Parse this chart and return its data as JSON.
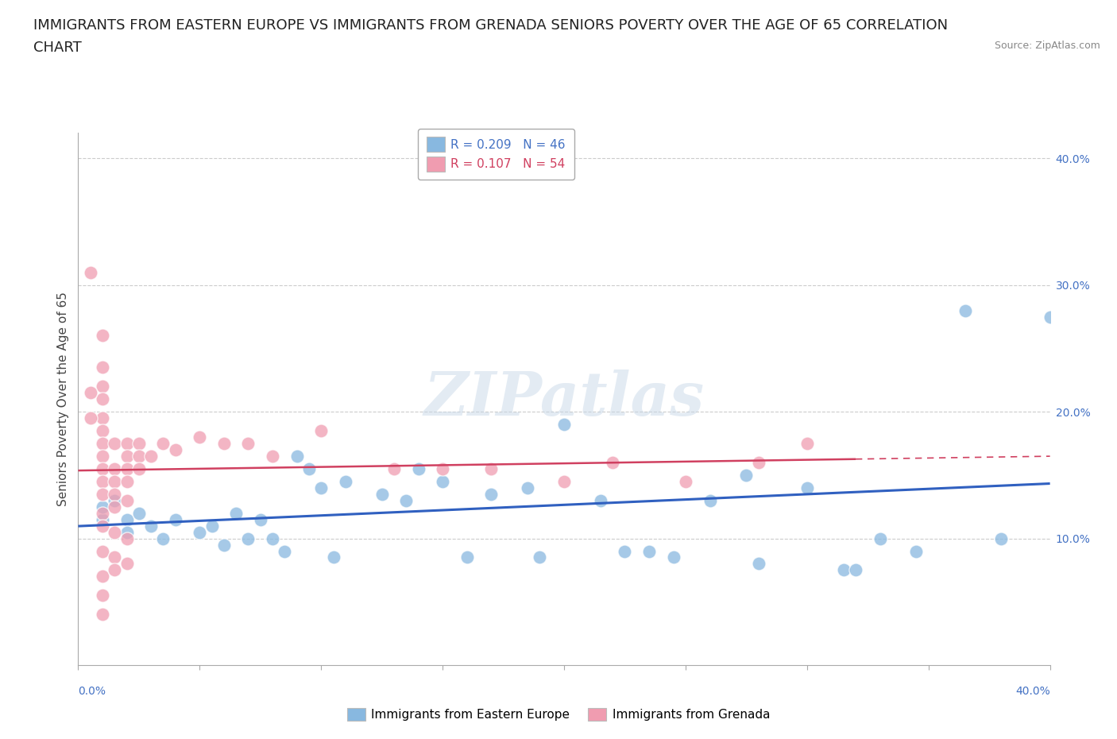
{
  "title_line1": "IMMIGRANTS FROM EASTERN EUROPE VS IMMIGRANTS FROM GRENADA SENIORS POVERTY OVER THE AGE OF 65 CORRELATION",
  "title_line2": "CHART",
  "source": "Source: ZipAtlas.com",
  "ylabel": "Seniors Poverty Over the Age of 65",
  "legend_entries": [
    {
      "label": "R = 0.209   N = 46",
      "color": "#a8c8e8"
    },
    {
      "label": "R = 0.107   N = 54",
      "color": "#f4b8c8"
    }
  ],
  "watermark_text": "ZIPatlas",
  "blue_color": "#88b8e0",
  "pink_color": "#f09cb0",
  "blue_line_color": "#3060c0",
  "pink_line_color": "#d04060",
  "background_color": "#ffffff",
  "grid_color": "#cccccc",
  "title_fontsize": 13,
  "axis_label_fontsize": 11,
  "tick_fontsize": 10,
  "legend_fontsize": 11,
  "source_fontsize": 9,
  "xlim": [
    0.0,
    0.4
  ],
  "ylim": [
    0.0,
    0.42
  ],
  "yticks": [
    0.1,
    0.2,
    0.3,
    0.4
  ],
  "ytick_labels": [
    "10.0%",
    "20.0%",
    "30.0%",
    "40.0%"
  ],
  "blue_scatter": [
    [
      0.01,
      0.115
    ],
    [
      0.01,
      0.125
    ],
    [
      0.015,
      0.13
    ],
    [
      0.02,
      0.115
    ],
    [
      0.02,
      0.105
    ],
    [
      0.025,
      0.12
    ],
    [
      0.03,
      0.11
    ],
    [
      0.035,
      0.1
    ],
    [
      0.04,
      0.115
    ],
    [
      0.05,
      0.105
    ],
    [
      0.055,
      0.11
    ],
    [
      0.06,
      0.095
    ],
    [
      0.065,
      0.12
    ],
    [
      0.07,
      0.1
    ],
    [
      0.075,
      0.115
    ],
    [
      0.08,
      0.1
    ],
    [
      0.085,
      0.09
    ],
    [
      0.09,
      0.165
    ],
    [
      0.095,
      0.155
    ],
    [
      0.1,
      0.14
    ],
    [
      0.105,
      0.085
    ],
    [
      0.11,
      0.145
    ],
    [
      0.125,
      0.135
    ],
    [
      0.135,
      0.13
    ],
    [
      0.14,
      0.155
    ],
    [
      0.15,
      0.145
    ],
    [
      0.16,
      0.085
    ],
    [
      0.17,
      0.135
    ],
    [
      0.185,
      0.14
    ],
    [
      0.19,
      0.085
    ],
    [
      0.2,
      0.19
    ],
    [
      0.215,
      0.13
    ],
    [
      0.225,
      0.09
    ],
    [
      0.235,
      0.09
    ],
    [
      0.245,
      0.085
    ],
    [
      0.26,
      0.13
    ],
    [
      0.275,
      0.15
    ],
    [
      0.28,
      0.08
    ],
    [
      0.3,
      0.14
    ],
    [
      0.315,
      0.075
    ],
    [
      0.32,
      0.075
    ],
    [
      0.33,
      0.1
    ],
    [
      0.345,
      0.09
    ],
    [
      0.365,
      0.28
    ],
    [
      0.38,
      0.1
    ],
    [
      0.4,
      0.275
    ]
  ],
  "pink_scatter": [
    [
      0.005,
      0.31
    ],
    [
      0.01,
      0.26
    ],
    [
      0.01,
      0.235
    ],
    [
      0.01,
      0.22
    ],
    [
      0.01,
      0.21
    ],
    [
      0.01,
      0.195
    ],
    [
      0.01,
      0.185
    ],
    [
      0.01,
      0.175
    ],
    [
      0.01,
      0.165
    ],
    [
      0.01,
      0.155
    ],
    [
      0.01,
      0.145
    ],
    [
      0.01,
      0.135
    ],
    [
      0.01,
      0.12
    ],
    [
      0.01,
      0.11
    ],
    [
      0.01,
      0.09
    ],
    [
      0.01,
      0.07
    ],
    [
      0.01,
      0.055
    ],
    [
      0.01,
      0.04
    ],
    [
      0.015,
      0.175
    ],
    [
      0.015,
      0.155
    ],
    [
      0.015,
      0.145
    ],
    [
      0.015,
      0.135
    ],
    [
      0.015,
      0.125
    ],
    [
      0.015,
      0.105
    ],
    [
      0.015,
      0.085
    ],
    [
      0.015,
      0.075
    ],
    [
      0.02,
      0.175
    ],
    [
      0.02,
      0.165
    ],
    [
      0.02,
      0.155
    ],
    [
      0.02,
      0.145
    ],
    [
      0.02,
      0.13
    ],
    [
      0.02,
      0.1
    ],
    [
      0.02,
      0.08
    ],
    [
      0.025,
      0.175
    ],
    [
      0.025,
      0.165
    ],
    [
      0.025,
      0.155
    ],
    [
      0.03,
      0.165
    ],
    [
      0.035,
      0.175
    ],
    [
      0.04,
      0.17
    ],
    [
      0.05,
      0.18
    ],
    [
      0.06,
      0.175
    ],
    [
      0.07,
      0.175
    ],
    [
      0.08,
      0.165
    ],
    [
      0.1,
      0.185
    ],
    [
      0.13,
      0.155
    ],
    [
      0.15,
      0.155
    ],
    [
      0.17,
      0.155
    ],
    [
      0.2,
      0.145
    ],
    [
      0.22,
      0.16
    ],
    [
      0.25,
      0.145
    ],
    [
      0.28,
      0.16
    ],
    [
      0.3,
      0.175
    ],
    [
      0.005,
      0.215
    ],
    [
      0.005,
      0.195
    ]
  ]
}
